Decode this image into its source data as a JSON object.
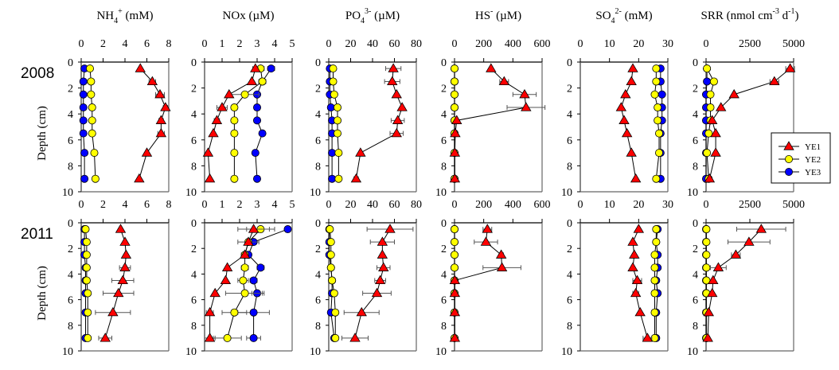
{
  "chart_data": {
    "type": "scatter",
    "title": "",
    "ylabel": "Depth (cm)",
    "ylim": [
      10,
      0
    ],
    "yticks": [
      0,
      2,
      4,
      6,
      8,
      10
    ],
    "depths": [
      0.5,
      1.5,
      2.5,
      3.5,
      4.5,
      5.5,
      7,
      9
    ],
    "legend": {
      "placement": "inside SRR 2008 panel, bottom-right",
      "entries": [
        {
          "name": "YE1",
          "marker": "triangle",
          "color": "#ff0000"
        },
        {
          "name": "YE2",
          "marker": "circle",
          "color": "#ffff00"
        },
        {
          "name": "YE3",
          "marker": "circle",
          "color": "#0000ff"
        }
      ]
    },
    "rows": [
      {
        "label": "2008"
      },
      {
        "label": "2011"
      }
    ],
    "panels": [
      {
        "title": "NH4+ (mM)",
        "title_main": "NH",
        "title_sub": "4",
        "title_sup": "+",
        "title_unit": " (mM)",
        "xlim": [
          0,
          8
        ],
        "xticks": [
          "0",
          "2",
          "4",
          "6",
          "8"
        ],
        "years": {
          "2008": {
            "YE1": {
              "values": [
                5.4,
                6.5,
                7.2,
                7.7,
                7.3,
                7.3,
                6.0,
                5.3
              ],
              "err": [
                0,
                0.3,
                0.4,
                0.2,
                0.2,
                0.3,
                0,
                0
              ]
            },
            "YE2": {
              "values": [
                0.8,
                0.9,
                0.9,
                1.0,
                1.0,
                1.0,
                1.2,
                1.3
              ],
              "err": [
                0,
                0,
                0,
                0,
                0,
                0,
                0.1,
                0.1
              ]
            },
            "YE3": {
              "values": [
                0.3,
                0.2,
                0.2,
                0.2,
                0.2,
                0.2,
                0.3,
                0.3
              ],
              "err": [
                0,
                0,
                0,
                0,
                0,
                0,
                0,
                0
              ]
            }
          },
          "2011": {
            "YE1": {
              "values": [
                3.6,
                4.0,
                4.1,
                4.0,
                3.8,
                3.4,
                2.9,
                2.2
              ],
              "err": [
                0,
                0,
                0,
                0.5,
                1.0,
                1.4,
                1.6,
                0.6
              ]
            },
            "YE2": {
              "values": [
                0.4,
                0.5,
                0.5,
                0.5,
                0.5,
                0.6,
                0.6,
                0.6
              ],
              "err": [
                0,
                0,
                0,
                0,
                0,
                0,
                0,
                0
              ]
            },
            "YE3": {
              "values": [
                0.3,
                0.3,
                0.3,
                0.4,
                0.4,
                0.4,
                0.4,
                0.4
              ],
              "err": [
                0,
                0,
                0,
                0,
                0,
                0,
                0,
                0
              ]
            }
          }
        }
      },
      {
        "title": "NOx (µM)",
        "title_main": "NOx",
        "title_sub": "",
        "title_sup": "",
        "title_unit": " (µM)",
        "xlim": [
          0,
          5
        ],
        "xticks": [
          "0",
          "1",
          "2",
          "3",
          "4",
          "5"
        ],
        "years": {
          "2008": {
            "YE1": {
              "values": [
                2.9,
                2.7,
                1.4,
                1.0,
                0.7,
                0.5,
                0.2,
                0.3
              ],
              "err": [
                0.15,
                0,
                0,
                0.3,
                0.15,
                0,
                0,
                0
              ]
            },
            "YE2": {
              "values": [
                3.2,
                3.3,
                2.3,
                1.7,
                1.7,
                1.7,
                1.7,
                1.7
              ],
              "err": [
                0.2,
                0,
                0.8,
                0,
                0,
                0,
                0,
                0
              ]
            },
            "YE3": {
              "values": [
                3.8,
                3.3,
                3.0,
                3.0,
                3.0,
                3.3,
                2.9,
                3.0
              ],
              "err": [
                0.2,
                0.2,
                0.1,
                0,
                0,
                0,
                0.1,
                0
              ]
            }
          },
          "2011": {
            "YE1": {
              "values": [
                2.8,
                2.5,
                2.3,
                1.3,
                1.2,
                0.6,
                0.3,
                0.3
              ],
              "err": [
                0.9,
                0.6,
                0,
                0,
                0,
                0,
                0.2,
                0.3
              ]
            },
            "YE2": {
              "values": [
                3.2,
                2.5,
                2.3,
                2.3,
                2.2,
                2.3,
                1.7,
                1.3
              ],
              "err": [
                0.8,
                0,
                0.2,
                0.2,
                0.3,
                1.1,
                0.7,
                0.8
              ]
            },
            "YE3": {
              "values": [
                4.75,
                2.8,
                2.5,
                3.2,
                2.8,
                3.0,
                2.8,
                2.8
              ],
              "err": [
                0,
                0,
                0,
                0.2,
                0.2,
                0.3,
                0.9,
                0.4
              ]
            }
          }
        }
      },
      {
        "title": "PO43- (µM)",
        "title_main": "PO",
        "title_sub": "4",
        "title_sup": "3-",
        "title_unit": " (µM)",
        "xlim": [
          0,
          80
        ],
        "xticks": [
          "0",
          "20",
          "40",
          "60",
          "80"
        ],
        "years": {
          "2008": {
            "YE1": {
              "values": [
                59,
                58,
                62,
                67,
                63,
                62,
                29,
                25
              ],
              "err": [
                7,
                7,
                0,
                0,
                6,
                6,
                0,
                2
              ]
            },
            "YE2": {
              "values": [
                4,
                4,
                5,
                8,
                8,
                8,
                9,
                9
              ],
              "err": [
                0,
                0,
                0,
                0,
                0,
                0,
                0,
                0
              ]
            },
            "YE3": {
              "values": [
                1,
                1,
                1,
                2,
                3,
                3,
                3,
                3
              ],
              "err": [
                0,
                0,
                0,
                0,
                0,
                0,
                0,
                0
              ]
            }
          },
          "2011": {
            "YE1": {
              "values": [
                56,
                49,
                49,
                50,
                47,
                44,
                30,
                24
              ],
              "err": [
                21,
                11,
                0,
                6,
                5,
                13,
                16,
                12
              ]
            },
            "YE2": {
              "values": [
                1,
                2,
                2,
                2,
                3,
                5,
                6,
                6
              ],
              "err": [
                0,
                0,
                0,
                0,
                0,
                0,
                0,
                0
              ]
            },
            "YE3": {
              "values": [
                0.5,
                0.5,
                0.5,
                2,
                3,
                3,
                2,
                5
              ],
              "err": [
                0,
                0,
                0,
                0,
                0,
                0,
                0,
                0
              ]
            }
          }
        }
      },
      {
        "title": "HS- (µM)",
        "title_main": "HS",
        "title_sub": "",
        "title_sup": "-",
        "title_unit": " (µM)",
        "xlim": [
          0,
          600
        ],
        "xticks": [
          "0",
          "200",
          "400",
          "600"
        ],
        "years": {
          "2008": {
            "YE1": {
              "values": [
                250,
                340,
                480,
                490,
                15,
                5,
                2,
                2
              ],
              "err": [
                0,
                30,
                80,
                130,
                0,
                0,
                0,
                0
              ]
            },
            "YE2": {
              "values": [
                0,
                0,
                0,
                0,
                0,
                0,
                0,
                0
              ],
              "err": [
                0,
                0,
                0,
                0,
                0,
                0,
                0,
                0
              ]
            },
            "YE3": {
              "values": [
                0,
                0,
                0,
                0,
                0,
                0,
                0,
                0
              ],
              "err": [
                0,
                0,
                0,
                0,
                0,
                0,
                0,
                0
              ]
            }
          },
          "2011": {
            "YE1": {
              "values": [
                225,
                215,
                320,
                325,
                2,
                2,
                2,
                2
              ],
              "err": [
                30,
                80,
                15,
                130,
                0,
                0,
                0,
                0
              ]
            },
            "YE2": {
              "values": [
                0,
                0,
                0,
                0,
                0,
                0,
                0,
                0
              ],
              "err": [
                0,
                0,
                0,
                0,
                0,
                0,
                0,
                0
              ]
            },
            "YE3": {
              "values": [
                0,
                0,
                0,
                0,
                0,
                0,
                0,
                0
              ],
              "err": [
                0,
                0,
                0,
                0,
                0,
                0,
                0,
                0
              ]
            }
          }
        }
      },
      {
        "title": "SO42- (mM)",
        "title_main": "SO",
        "title_sub": "4",
        "title_sup": "2-",
        "title_unit": " (mM)",
        "xlim": [
          0,
          30
        ],
        "xticks": [
          "0",
          "10",
          "20",
          "30"
        ],
        "years": {
          "2008": {
            "YE1": {
              "values": [
                18.0,
                17.5,
                15.5,
                14.0,
                15.0,
                16.0,
                17.5,
                19.0
              ],
              "err": [
                0,
                0,
                0,
                0,
                0,
                0,
                0,
                0
              ]
            },
            "YE2": {
              "values": [
                26.0,
                26.0,
                25.5,
                26.5,
                26.5,
                27.0,
                27.0,
                26.0
              ],
              "err": [
                0,
                0,
                0,
                0,
                0,
                0,
                0,
                0
              ]
            },
            "YE3": {
              "values": [
                27.5,
                27.5,
                28.0,
                28.0,
                28.0,
                27.5,
                27.5,
                27.5
              ],
              "err": [
                0,
                0,
                0,
                0,
                0,
                0,
                0,
                0
              ]
            }
          },
          "2011": {
            "YE1": {
              "values": [
                20.0,
                18.0,
                18.5,
                18.0,
                19.5,
                19.0,
                20.5,
                23.0
              ],
              "err": [
                0,
                0,
                0,
                0,
                1.5,
                1.0,
                0,
                1.5
              ]
            },
            "YE2": {
              "values": [
                26.0,
                26.0,
                25.5,
                25.5,
                25.5,
                25.5,
                25.5,
                25.5
              ],
              "err": [
                0,
                0,
                0,
                0,
                0,
                0,
                0,
                0
              ]
            },
            "YE3": {
              "values": [
                26.5,
                26.0,
                26.5,
                26.5,
                26.0,
                26.5,
                26.0,
                26.0
              ],
              "err": [
                0,
                0,
                0,
                0,
                0,
                0,
                0,
                0
              ]
            }
          }
        }
      },
      {
        "title": "SRR (nmol cm-3 d-1)",
        "title_main": "SRR (nmol cm",
        "title_sub": "",
        "title_sup": "-3",
        "title_unit": " d",
        "title_sup2": "-1",
        "title_end": ")",
        "xlim": [
          0,
          5000
        ],
        "xticks": [
          "0",
          "2500",
          "5000"
        ],
        "years": {
          "2008": {
            "YE1": {
              "values": [
                4800,
                3900,
                1600,
                850,
                350,
                550,
                550,
                200
              ],
              "err": [
                250,
                250,
                0,
                0,
                0,
                0,
                0,
                0
              ]
            },
            "YE2": {
              "values": [
                50,
                450,
                250,
                250,
                250,
                150,
                50,
                150
              ],
              "err": [
                0,
                0,
                0,
                0,
                0,
                0,
                0,
                0
              ]
            },
            "YE3": {
              "values": [
                50,
                50,
                0,
                0,
                0,
                0,
                0,
                0
              ],
              "err": [
                0,
                0,
                0,
                0,
                0,
                0,
                0,
                0
              ]
            }
          },
          "2011": {
            "YE1": {
              "values": [
                3150,
                2450,
                1700,
                700,
                400,
                350,
                150,
                100
              ],
              "err": [
                1400,
                1200,
                250,
                450,
                0,
                0,
                0,
                0
              ]
            },
            "YE2": {
              "values": [
                20,
                20,
                20,
                20,
                20,
                20,
                20,
                20
              ],
              "err": [
                0,
                0,
                0,
                0,
                0,
                0,
                0,
                0
              ]
            },
            "YE3": {
              "values": [
                0,
                0,
                0,
                0,
                0,
                0,
                0,
                0
              ],
              "err": [
                0,
                0,
                0,
                0,
                0,
                0,
                0,
                0
              ]
            }
          }
        }
      }
    ]
  }
}
